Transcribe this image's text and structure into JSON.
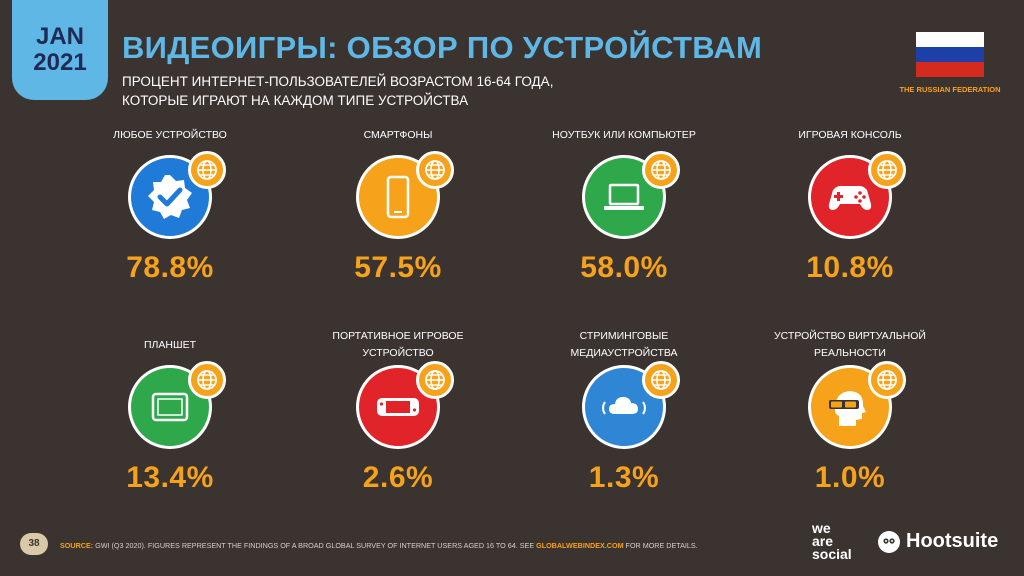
{
  "badge": {
    "month": "JAN",
    "year": "2021"
  },
  "title": "ВИДЕОИГРЫ: ОБЗОР ПО УСТРОЙСТВАМ",
  "subtitle": {
    "line1": "ПРОЦЕНТ ИНТЕРНЕТ-ПОЛЬЗОВАТЕЛЕЙ ВОЗРАСТОМ 16-64 ГОДА,",
    "line2": "КОТОРЫЕ ИГРАЮТ НА КАЖДОМ ТИПЕ УСТРОЙСТВА"
  },
  "country": "THE RUSSIAN FEDERATION",
  "colors": {
    "blue": "#1f7ad8",
    "orange": "#f7a21b",
    "green": "#2ea84a",
    "red": "#e0242a",
    "cyan": "#2f86d4",
    "accent": "#5fb7e5"
  },
  "tiles": [
    {
      "label1": "ЛЮБОЕ УСТРОЙСТВО",
      "label2": "",
      "value": "78.8%",
      "icon": "verified-check-icon",
      "color": "#1f7ad8"
    },
    {
      "label1": "СМАРТФОНЫ",
      "label2": "",
      "value": "57.5%",
      "icon": "smartphone-icon",
      "color": "#f7a21b"
    },
    {
      "label1": "НОУТБУК ИЛИ КОМПЬЮТЕР",
      "label2": "",
      "value": "58.0%",
      "icon": "laptop-icon",
      "color": "#2ea84a"
    },
    {
      "label1": "ИГРОВАЯ КОНСОЛЬ",
      "label2": "",
      "value": "10.8%",
      "icon": "gamepad-icon",
      "color": "#e0242a"
    },
    {
      "label1": "ПЛАНШЕТ",
      "label2": "",
      "value": "13.4%",
      "icon": "tablet-icon",
      "color": "#2ea84a"
    },
    {
      "label1": "ПОРТАТИВНОЕ ИГРОВОЕ",
      "label2": "УСТРОЙСТВО",
      "value": "2.6%",
      "icon": "handheld-console-icon",
      "color": "#e0242a"
    },
    {
      "label1": "СТРИМИНГОВЫЕ",
      "label2": "МЕДИАУСТРОЙСТВА",
      "value": "1.3%",
      "icon": "cloud-streaming-icon",
      "color": "#2f86d4"
    },
    {
      "label1": "УСТРОЙСТВО ВИРТУАЛЬНОЙ",
      "label2": "РЕАЛЬНОСТИ",
      "value": "1.0%",
      "icon": "vr-headset-icon",
      "color": "#f7a21b"
    }
  ],
  "footer": {
    "page": "38",
    "source_label": "SOURCE:",
    "source_text": " GWI (Q3 2020). FIGURES REPRESENT THE FINDINGS OF A BROAD GLOBAL SURVEY OF INTERNET USERS AGED 16 TO 64. SEE ",
    "source_link": "GLOBALWEBINDEX.COM",
    "source_tail": " FOR MORE DETAILS.",
    "brand1_line1": "we",
    "brand1_line2": "are",
    "brand1_line3": "social",
    "brand2": "Hootsuite"
  }
}
